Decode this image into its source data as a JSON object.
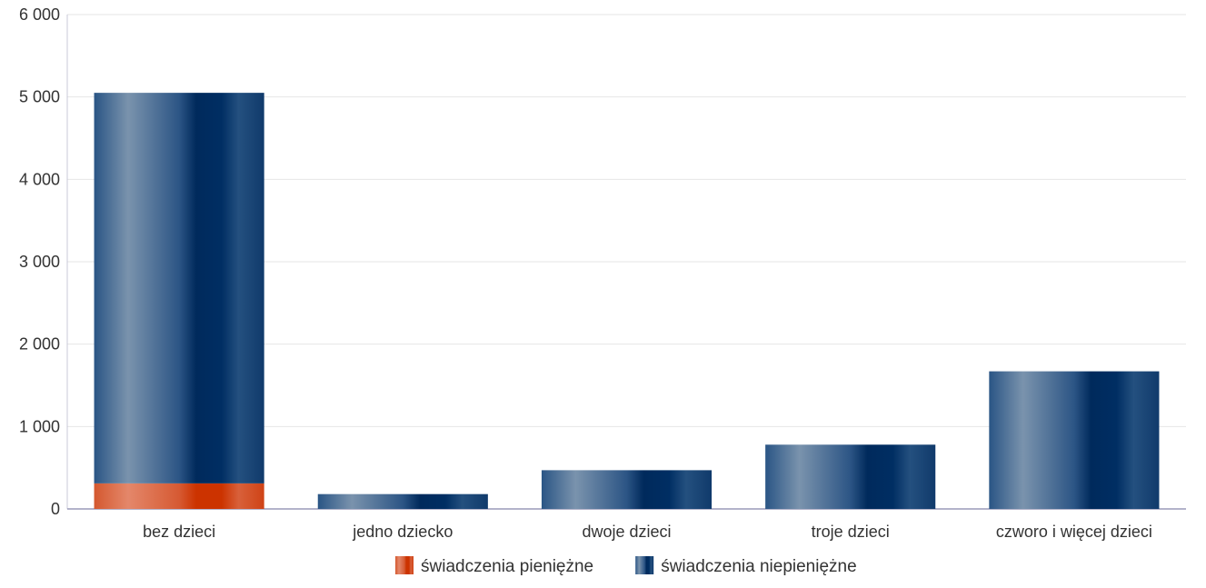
{
  "chart_data": {
    "type": "bar",
    "stacked": true,
    "categories": [
      "bez dzieci",
      "jedno dziecko",
      "dwoje dzieci",
      "troje dzieci",
      "czworo i więcej dzieci"
    ],
    "series": [
      {
        "name": "świadczenia pieniężne",
        "values": [
          310,
          0,
          0,
          0,
          0
        ],
        "color": "#cc3300"
      },
      {
        "name": "świadczenia niepieniężne",
        "values": [
          4740,
          180,
          470,
          780,
          1670
        ],
        "color": "#1f4a7a"
      }
    ],
    "ylim": [
      0,
      6000
    ],
    "yticks": [
      0,
      1000,
      2000,
      3000,
      4000,
      5000,
      6000
    ],
    "ytick_labels": [
      "0",
      "1 000",
      "2 000",
      "3 000",
      "4 000",
      "5 000",
      "6 000"
    ],
    "grid": true,
    "legend_position": "bottom"
  }
}
